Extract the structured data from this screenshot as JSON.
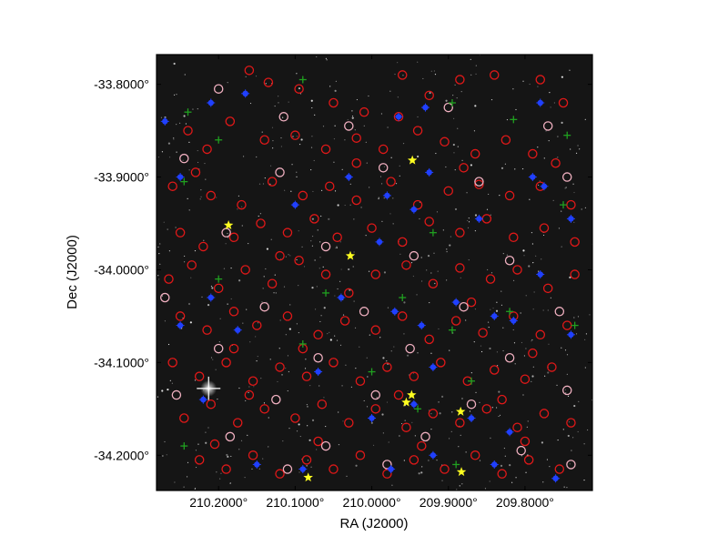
{
  "chart_data": {
    "type": "scatter",
    "title": "",
    "xlabel": "RA (J2000)",
    "ylabel": "Dec (J2000)",
    "xlim": [
      210.281,
      209.712
    ],
    "ylim": [
      -34.238,
      -33.768
    ],
    "x_ticks": [
      {
        "value": 210.2,
        "label": "210.2000°"
      },
      {
        "value": 210.1,
        "label": "210.1000°"
      },
      {
        "value": 210.0,
        "label": "210.0000°"
      },
      {
        "value": 209.9,
        "label": "209.9000°"
      },
      {
        "value": 209.8,
        "label": "209.8000°"
      }
    ],
    "y_ticks": [
      {
        "value": -33.8,
        "label": "-33.8000°"
      },
      {
        "value": -33.9,
        "label": "-33.9000°"
      },
      {
        "value": -34.0,
        "label": "-34.0000°"
      },
      {
        "value": -34.1,
        "label": "-34.1000°"
      },
      {
        "value": -34.2,
        "label": "-34.2000°"
      }
    ],
    "grid": false,
    "background": "dark-sky-image",
    "series": [
      {
        "marker": "red-circle",
        "color": "#e01818",
        "points": [
          [
            210.16,
            -33.785
          ],
          [
            210.135,
            -33.798
          ],
          [
            210.095,
            -33.805
          ],
          [
            210.05,
            -33.82
          ],
          [
            210.01,
            -33.83
          ],
          [
            209.965,
            -33.835
          ],
          [
            209.925,
            -33.812
          ],
          [
            209.885,
            -33.795
          ],
          [
            209.84,
            -33.79
          ],
          [
            209.78,
            -33.795
          ],
          [
            209.75,
            -33.82
          ],
          [
            210.24,
            -33.85
          ],
          [
            210.215,
            -33.87
          ],
          [
            210.185,
            -33.84
          ],
          [
            210.14,
            -33.86
          ],
          [
            210.1,
            -33.855
          ],
          [
            210.06,
            -33.87
          ],
          [
            210.02,
            -33.858
          ],
          [
            209.985,
            -33.87
          ],
          [
            209.94,
            -33.85
          ],
          [
            209.905,
            -33.862
          ],
          [
            209.865,
            -33.875
          ],
          [
            209.825,
            -33.86
          ],
          [
            209.79,
            -33.875
          ],
          [
            209.76,
            -33.885
          ],
          [
            210.26,
            -33.91
          ],
          [
            210.21,
            -33.92
          ],
          [
            210.17,
            -33.93
          ],
          [
            210.13,
            -33.905
          ],
          [
            210.09,
            -33.92
          ],
          [
            210.055,
            -33.91
          ],
          [
            210.02,
            -33.925
          ],
          [
            209.975,
            -33.905
          ],
          [
            209.94,
            -33.93
          ],
          [
            209.9,
            -33.915
          ],
          [
            209.86,
            -33.908
          ],
          [
            209.82,
            -33.92
          ],
          [
            209.78,
            -33.91
          ],
          [
            209.74,
            -33.93
          ],
          [
            210.25,
            -33.96
          ],
          [
            210.22,
            -33.975
          ],
          [
            210.18,
            -33.965
          ],
          [
            210.145,
            -33.95
          ],
          [
            210.11,
            -33.96
          ],
          [
            210.075,
            -33.945
          ],
          [
            210.045,
            -33.965
          ],
          [
            210.0,
            -33.955
          ],
          [
            209.96,
            -33.97
          ],
          [
            209.925,
            -33.948
          ],
          [
            209.885,
            -33.96
          ],
          [
            209.85,
            -33.945
          ],
          [
            209.815,
            -33.965
          ],
          [
            209.775,
            -33.955
          ],
          [
            209.735,
            -33.97
          ],
          [
            210.265,
            -34.01
          ],
          [
            210.235,
            -33.995
          ],
          [
            210.2,
            -34.02
          ],
          [
            210.165,
            -34.0
          ],
          [
            210.13,
            -34.015
          ],
          [
            210.095,
            -33.99
          ],
          [
            210.06,
            -34.005
          ],
          [
            210.03,
            -34.025
          ],
          [
            209.995,
            -34.005
          ],
          [
            209.955,
            -33.995
          ],
          [
            209.92,
            -34.015
          ],
          [
            209.885,
            -33.998
          ],
          [
            209.845,
            -34.01
          ],
          [
            209.81,
            -34.0
          ],
          [
            209.77,
            -34.02
          ],
          [
            209.735,
            -34.005
          ],
          [
            210.25,
            -34.05
          ],
          [
            210.215,
            -34.065
          ],
          [
            210.18,
            -34.045
          ],
          [
            210.15,
            -34.06
          ],
          [
            210.11,
            -34.05
          ],
          [
            210.07,
            -34.07
          ],
          [
            210.035,
            -34.055
          ],
          [
            209.995,
            -34.065
          ],
          [
            209.96,
            -34.05
          ],
          [
            209.925,
            -34.075
          ],
          [
            209.89,
            -34.055
          ],
          [
            209.855,
            -34.068
          ],
          [
            209.815,
            -34.05
          ],
          [
            209.78,
            -34.07
          ],
          [
            209.745,
            -34.06
          ],
          [
            210.26,
            -34.1
          ],
          [
            210.225,
            -34.115
          ],
          [
            210.19,
            -34.1
          ],
          [
            210.155,
            -34.12
          ],
          [
            210.12,
            -34.105
          ],
          [
            210.085,
            -34.115
          ],
          [
            210.05,
            -34.1
          ],
          [
            210.015,
            -34.12
          ],
          [
            209.98,
            -34.105
          ],
          [
            209.945,
            -34.115
          ],
          [
            209.91,
            -34.1
          ],
          [
            209.875,
            -34.12
          ],
          [
            209.84,
            -34.108
          ],
          [
            209.8,
            -34.118
          ],
          [
            209.765,
            -34.105
          ],
          [
            210.245,
            -34.16
          ],
          [
            210.21,
            -34.145
          ],
          [
            210.175,
            -34.165
          ],
          [
            210.14,
            -34.15
          ],
          [
            210.1,
            -34.16
          ],
          [
            210.065,
            -34.145
          ],
          [
            210.03,
            -34.165
          ],
          [
            209.995,
            -34.15
          ],
          [
            209.955,
            -34.17
          ],
          [
            209.92,
            -34.155
          ],
          [
            209.885,
            -34.165
          ],
          [
            209.85,
            -34.15
          ],
          [
            209.81,
            -34.17
          ],
          [
            209.775,
            -34.155
          ],
          [
            209.74,
            -34.165
          ],
          [
            210.225,
            -34.205
          ],
          [
            210.19,
            -34.215
          ],
          [
            210.155,
            -34.2
          ],
          [
            210.12,
            -34.22
          ],
          [
            210.085,
            -34.205
          ],
          [
            210.05,
            -34.215
          ],
          [
            210.015,
            -34.2
          ],
          [
            209.98,
            -34.22
          ],
          [
            209.945,
            -34.205
          ],
          [
            209.905,
            -34.215
          ],
          [
            209.865,
            -34.2
          ],
          [
            209.83,
            -34.22
          ],
          [
            209.795,
            -34.205
          ],
          [
            209.755,
            -34.215
          ],
          [
            210.205,
            -34.188
          ],
          [
            210.07,
            -34.185
          ],
          [
            209.935,
            -34.19
          ],
          [
            209.8,
            -34.185
          ],
          [
            210.12,
            -33.985
          ],
          [
            209.87,
            -34.035
          ],
          [
            210.09,
            -34.085
          ],
          [
            209.965,
            -34.135
          ],
          [
            210.16,
            -34.135
          ],
          [
            209.83,
            -34.14
          ],
          [
            210.02,
            -33.885
          ],
          [
            209.88,
            -33.89
          ],
          [
            210.23,
            -33.895
          ],
          [
            209.96,
            -33.79
          ],
          [
            210.18,
            -34.085
          ],
          [
            209.79,
            -34.09
          ]
        ]
      },
      {
        "marker": "pink-circle",
        "color": "#f0b0c0",
        "points": [
          [
            210.2,
            -33.805
          ],
          [
            210.115,
            -33.835
          ],
          [
            210.03,
            -33.845
          ],
          [
            209.9,
            -33.825
          ],
          [
            209.77,
            -33.845
          ],
          [
            210.245,
            -33.88
          ],
          [
            210.12,
            -33.895
          ],
          [
            209.985,
            -33.89
          ],
          [
            209.86,
            -33.905
          ],
          [
            209.745,
            -33.9
          ],
          [
            210.19,
            -33.96
          ],
          [
            210.06,
            -33.975
          ],
          [
            209.945,
            -33.985
          ],
          [
            209.82,
            -33.99
          ],
          [
            210.27,
            -34.03
          ],
          [
            210.14,
            -34.04
          ],
          [
            210.01,
            -34.045
          ],
          [
            209.88,
            -34.04
          ],
          [
            209.755,
            -34.045
          ],
          [
            210.2,
            -34.085
          ],
          [
            210.07,
            -34.095
          ],
          [
            209.95,
            -34.085
          ],
          [
            209.82,
            -34.095
          ],
          [
            210.255,
            -34.135
          ],
          [
            210.125,
            -34.14
          ],
          [
            209.995,
            -34.135
          ],
          [
            209.87,
            -34.145
          ],
          [
            209.745,
            -34.13
          ],
          [
            210.185,
            -34.18
          ],
          [
            210.06,
            -34.19
          ],
          [
            209.93,
            -34.18
          ],
          [
            209.805,
            -34.195
          ],
          [
            210.11,
            -34.215
          ],
          [
            209.98,
            -34.21
          ],
          [
            209.74,
            -34.21
          ]
        ]
      },
      {
        "marker": "blue-star",
        "color": "#2040ff",
        "points": [
          [
            210.27,
            -33.84
          ],
          [
            210.21,
            -33.82
          ],
          [
            210.165,
            -33.81
          ],
          [
            209.965,
            -33.835
          ],
          [
            209.93,
            -33.825
          ],
          [
            209.78,
            -33.82
          ],
          [
            210.25,
            -33.9
          ],
          [
            210.03,
            -33.9
          ],
          [
            209.925,
            -33.895
          ],
          [
            209.79,
            -33.9
          ],
          [
            209.775,
            -33.91
          ],
          [
            209.74,
            -33.945
          ],
          [
            210.1,
            -33.93
          ],
          [
            209.98,
            -33.92
          ],
          [
            209.945,
            -33.935
          ],
          [
            209.86,
            -33.945
          ],
          [
            209.99,
            -33.97
          ],
          [
            209.78,
            -34.005
          ],
          [
            210.21,
            -34.03
          ],
          [
            210.04,
            -34.03
          ],
          [
            209.97,
            -34.045
          ],
          [
            209.89,
            -34.035
          ],
          [
            209.84,
            -34.05
          ],
          [
            210.25,
            -34.06
          ],
          [
            210.175,
            -34.065
          ],
          [
            209.935,
            -34.06
          ],
          [
            209.815,
            -34.055
          ],
          [
            209.74,
            -34.07
          ],
          [
            210.07,
            -34.11
          ],
          [
            209.92,
            -34.105
          ],
          [
            210.22,
            -34.14
          ],
          [
            209.945,
            -34.145
          ],
          [
            209.87,
            -34.16
          ],
          [
            210.0,
            -34.16
          ],
          [
            209.82,
            -34.175
          ],
          [
            210.15,
            -34.21
          ],
          [
            209.975,
            -34.215
          ],
          [
            209.84,
            -34.21
          ],
          [
            209.92,
            -34.2
          ],
          [
            210.09,
            -34.215
          ],
          [
            209.76,
            -34.225
          ]
        ]
      },
      {
        "marker": "green-cross",
        "color": "#20a020",
        "points": [
          [
            210.09,
            -33.795
          ],
          [
            210.24,
            -33.83
          ],
          [
            209.895,
            -33.82
          ],
          [
            209.815,
            -33.838
          ],
          [
            210.2,
            -33.86
          ],
          [
            209.745,
            -33.855
          ],
          [
            210.245,
            -33.905
          ],
          [
            209.75,
            -33.93
          ],
          [
            209.92,
            -33.96
          ],
          [
            210.2,
            -34.01
          ],
          [
            210.06,
            -34.025
          ],
          [
            209.96,
            -34.03
          ],
          [
            209.82,
            -34.045
          ],
          [
            209.735,
            -34.06
          ],
          [
            210.09,
            -34.08
          ],
          [
            209.895,
            -34.065
          ],
          [
            210.0,
            -34.11
          ],
          [
            209.87,
            -34.12
          ],
          [
            209.94,
            -34.15
          ],
          [
            210.245,
            -34.19
          ],
          [
            209.89,
            -34.21
          ]
        ]
      },
      {
        "marker": "yellow-star",
        "color": "#ffff20",
        "points": [
          [
            210.187,
            -33.952
          ],
          [
            210.028,
            -33.985
          ],
          [
            209.947,
            -33.882
          ],
          [
            209.948,
            -34.135
          ],
          [
            209.955,
            -34.143
          ],
          [
            209.884,
            -34.153
          ],
          [
            209.883,
            -34.218
          ],
          [
            210.083,
            -34.224
          ]
        ]
      }
    ],
    "bright_sources": [
      {
        "ra": 210.213,
        "dec": -34.128
      }
    ]
  }
}
